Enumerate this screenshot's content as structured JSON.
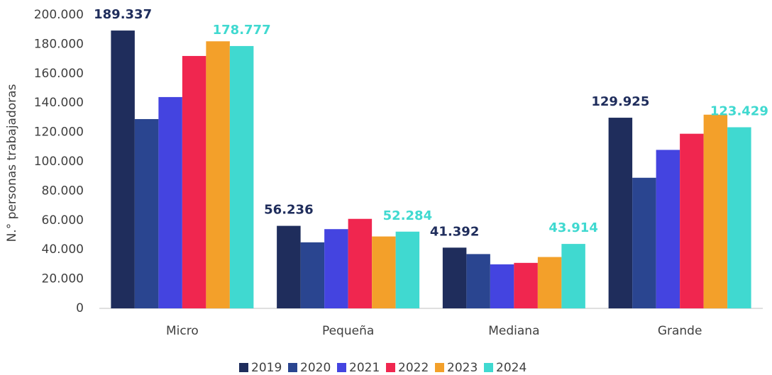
{
  "chart_data": {
    "type": "bar",
    "y_label": "N.° personas trabajadoras",
    "categories": [
      "Micro",
      "Pequeña",
      "Mediana",
      "Grande"
    ],
    "series": [
      {
        "name": "2019",
        "color": "#1f2d5c",
        "values": [
          189337,
          56236,
          41392,
          129925
        ],
        "value_labels": [
          "189.337",
          "56.236",
          "41.392",
          "129.925"
        ]
      },
      {
        "name": "2020",
        "color": "#2a4590",
        "values": [
          129000,
          45000,
          37000,
          89000
        ]
      },
      {
        "name": "2021",
        "color": "#4444e0",
        "values": [
          144000,
          54000,
          30000,
          108000
        ]
      },
      {
        "name": "2022",
        "color": "#f0264f",
        "values": [
          172000,
          61000,
          31000,
          119000
        ]
      },
      {
        "name": "2023",
        "color": "#f3a02a",
        "values": [
          182000,
          49000,
          35000,
          132000
        ]
      },
      {
        "name": "2024",
        "color": "#40d9d0",
        "values": [
          178777,
          52284,
          43914,
          123429
        ],
        "value_labels": [
          "178.777",
          "52.284",
          "43.914",
          "123.429"
        ]
      }
    ],
    "ylim": [
      0,
      200000
    ],
    "yticks": [
      0,
      {
        "value": 20000,
        "label": "20.000"
      },
      {
        "value": 40000,
        "label": "40.000"
      },
      {
        "value": 60000,
        "label": "60.000"
      },
      {
        "value": 80000,
        "label": "80.000"
      },
      {
        "value": 100000,
        "label": "100.000"
      },
      {
        "value": 120000,
        "label": "120.000"
      },
      {
        "value": 140000,
        "label": "140.000"
      },
      {
        "value": 160000,
        "label": "160.000"
      },
      {
        "value": 180000,
        "label": "180.000"
      },
      {
        "value": 200000,
        "label": "200.000"
      }
    ],
    "grid": false,
    "legend": "bottom"
  }
}
